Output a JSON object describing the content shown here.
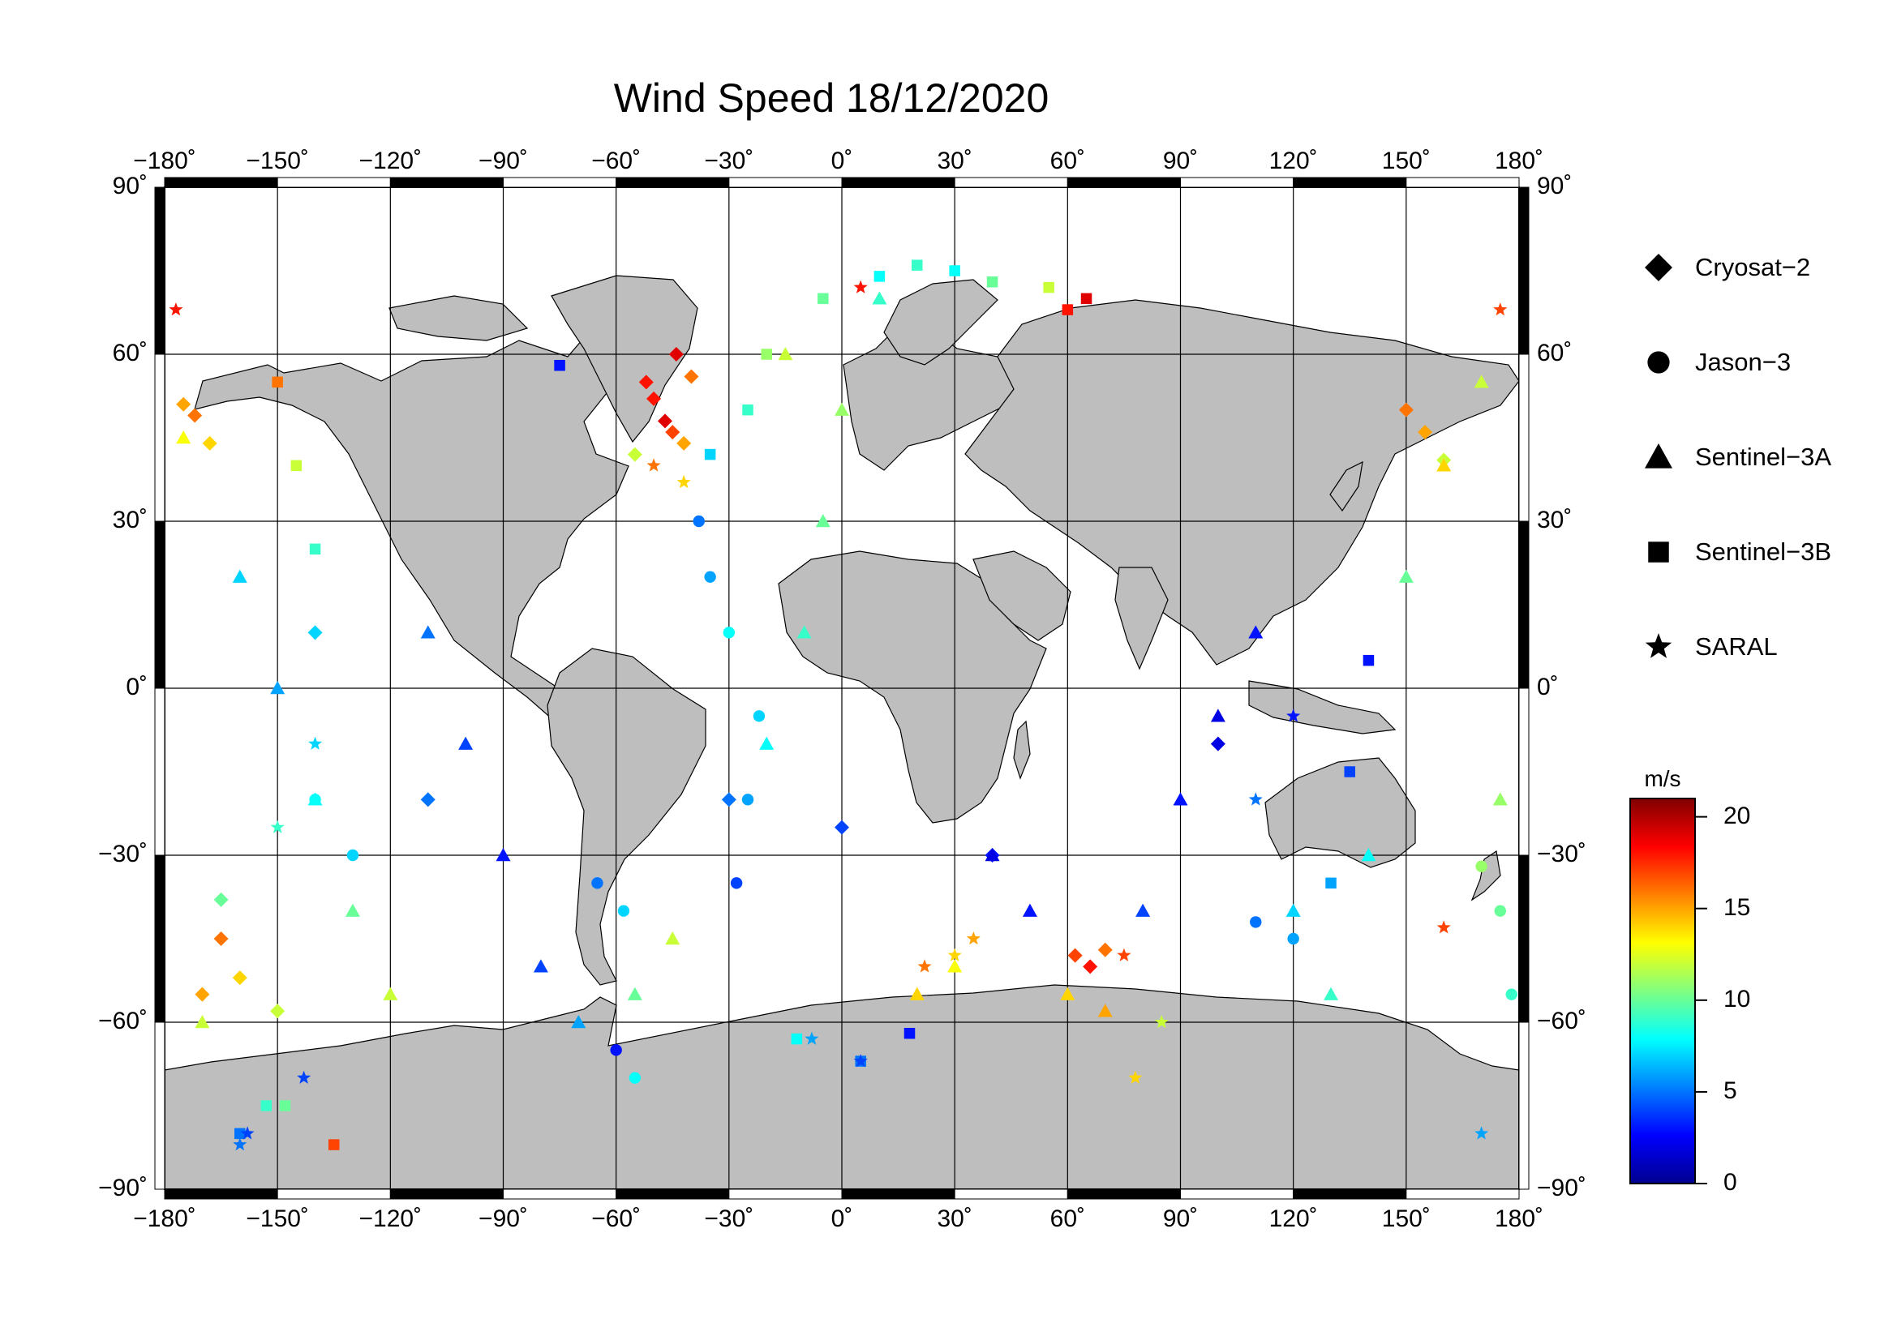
{
  "title": "Wind Speed 18/12/2020",
  "lon_ticks": [
    {
      "value": -180,
      "label": "−180˚"
    },
    {
      "value": -150,
      "label": "−150˚"
    },
    {
      "value": -120,
      "label": "−120˚"
    },
    {
      "value": -90,
      "label": "−90˚"
    },
    {
      "value": -60,
      "label": "−60˚"
    },
    {
      "value": -30,
      "label": "−30˚"
    },
    {
      "value": 0,
      "label": "0˚"
    },
    {
      "value": 30,
      "label": "30˚"
    },
    {
      "value": 60,
      "label": "60˚"
    },
    {
      "value": 90,
      "label": "90˚"
    },
    {
      "value": 120,
      "label": "120˚"
    },
    {
      "value": 150,
      "label": "150˚"
    },
    {
      "value": 180,
      "label": "180˚"
    }
  ],
  "lat_ticks": [
    {
      "value": 90,
      "label": "90˚"
    },
    {
      "value": 60,
      "label": "60˚"
    },
    {
      "value": 30,
      "label": "30˚"
    },
    {
      "value": 0,
      "label": "0˚"
    },
    {
      "value": -30,
      "label": "−30˚"
    },
    {
      "value": -60,
      "label": "−60˚"
    },
    {
      "value": -90,
      "label": "−90˚"
    }
  ],
  "legend": [
    {
      "symbol": "diamond",
      "label": "Cryosat−2"
    },
    {
      "symbol": "circle",
      "label": "Jason−3"
    },
    {
      "symbol": "triangle",
      "label": "Sentinel−3A"
    },
    {
      "symbol": "square",
      "label": "Sentinel−3B"
    },
    {
      "symbol": "star",
      "label": "SARAL"
    }
  ],
  "colorbar": {
    "unit": "m/s",
    "min": 0,
    "max": 21,
    "ticks": [
      {
        "value": 20,
        "label": "20"
      },
      {
        "value": 15,
        "label": "15"
      },
      {
        "value": 10,
        "label": "10"
      },
      {
        "value": 5,
        "label": "5"
      },
      {
        "value": 0,
        "label": "0"
      }
    ],
    "colors": [
      "#00008f",
      "#0000ff",
      "#0080ff",
      "#00ffff",
      "#80ff80",
      "#ffff00",
      "#ff8000",
      "#ff0000",
      "#800000"
    ]
  },
  "colors": {
    "land": "#bebebe",
    "ocean": "#ffffff",
    "frame": "#000000"
  },
  "chart_data": {
    "type": "scatter",
    "map_projection": "equirectangular",
    "xlim": [
      -180,
      180
    ],
    "ylim": [
      -90,
      90
    ],
    "x_unit": "longitude (degrees)",
    "y_unit": "latitude (degrees)",
    "grid": true,
    "legend_position": "right",
    "color_scale": {
      "unit": "m/s",
      "range": [
        0,
        21
      ],
      "colormap": "jet"
    },
    "series": [
      {
        "name": "Cryosat−2",
        "marker": "diamond",
        "points": [
          [
            -47,
            48,
            19
          ],
          [
            -50,
            52,
            18
          ],
          [
            -45,
            46,
            17
          ],
          [
            -52,
            55,
            18
          ],
          [
            -44,
            60,
            19
          ],
          [
            -40,
            56,
            16
          ],
          [
            -42,
            44,
            15
          ],
          [
            -55,
            42,
            12
          ],
          [
            -172,
            49,
            16
          ],
          [
            -168,
            44,
            14
          ],
          [
            -175,
            51,
            15
          ],
          [
            -165,
            -45,
            16
          ],
          [
            -160,
            -52,
            14
          ],
          [
            -150,
            -58,
            12
          ],
          [
            -170,
            -55,
            15
          ],
          [
            62,
            -48,
            17
          ],
          [
            66,
            -50,
            18
          ],
          [
            70,
            -47,
            16
          ],
          [
            150,
            50,
            16
          ],
          [
            155,
            46,
            15
          ],
          [
            160,
            41,
            12
          ],
          [
            -165,
            -38,
            10
          ],
          [
            -30,
            -20,
            5
          ],
          [
            0,
            -25,
            4
          ],
          [
            40,
            -30,
            3
          ],
          [
            100,
            -10,
            2
          ],
          [
            -110,
            -20,
            5
          ],
          [
            -140,
            10,
            7
          ]
        ]
      },
      {
        "name": "Jason−3",
        "marker": "circle",
        "points": [
          [
            -60,
            -65,
            3
          ],
          [
            -55,
            -70,
            8
          ],
          [
            -58,
            -40,
            7
          ],
          [
            -65,
            -35,
            5
          ],
          [
            -28,
            -35,
            4
          ],
          [
            -25,
            -20,
            6
          ],
          [
            -22,
            -5,
            7
          ],
          [
            -30,
            10,
            8
          ],
          [
            -35,
            20,
            6
          ],
          [
            -38,
            30,
            5
          ],
          [
            175,
            -40,
            10
          ],
          [
            170,
            -32,
            11
          ],
          [
            178,
            -55,
            9
          ],
          [
            120,
            -45,
            6
          ],
          [
            110,
            -42,
            5
          ],
          [
            -130,
            -30,
            7
          ],
          [
            -140,
            -20,
            8
          ]
        ]
      },
      {
        "name": "Sentinel−3A",
        "marker": "triangle",
        "points": [
          [
            -160,
            20,
            7
          ],
          [
            -150,
            0,
            6
          ],
          [
            -140,
            -20,
            8
          ],
          [
            -130,
            -40,
            10
          ],
          [
            -120,
            -55,
            12
          ],
          [
            -110,
            10,
            5
          ],
          [
            -100,
            -10,
            4
          ],
          [
            -90,
            -30,
            3
          ],
          [
            -80,
            -50,
            4
          ],
          [
            -70,
            -60,
            6
          ],
          [
            -20,
            -10,
            8
          ],
          [
            -10,
            10,
            9
          ],
          [
            -5,
            30,
            10
          ],
          [
            0,
            50,
            11
          ],
          [
            10,
            70,
            9
          ],
          [
            -15,
            60,
            12
          ],
          [
            40,
            -30,
            2
          ],
          [
            50,
            -40,
            3
          ],
          [
            60,
            -55,
            14
          ],
          [
            70,
            -58,
            15
          ],
          [
            80,
            -40,
            4
          ],
          [
            90,
            -20,
            3
          ],
          [
            100,
            -5,
            2
          ],
          [
            110,
            10,
            3
          ],
          [
            120,
            -40,
            7
          ],
          [
            130,
            -55,
            9
          ],
          [
            140,
            -30,
            8
          ],
          [
            150,
            20,
            10
          ],
          [
            160,
            40,
            14
          ],
          [
            170,
            55,
            12
          ],
          [
            175,
            -20,
            11
          ],
          [
            -175,
            45,
            13
          ],
          [
            -170,
            -60,
            12
          ],
          [
            -55,
            -55,
            10
          ],
          [
            -45,
            -45,
            12
          ],
          [
            30,
            -50,
            13
          ],
          [
            20,
            -55,
            14
          ]
        ]
      },
      {
        "name": "Sentinel−3B",
        "marker": "square",
        "points": [
          [
            -153,
            -75,
            9
          ],
          [
            -148,
            -75,
            10
          ],
          [
            -135,
            -82,
            17
          ],
          [
            -160,
            -80,
            5
          ],
          [
            5,
            -67,
            5
          ],
          [
            -12,
            -63,
            8
          ],
          [
            18,
            -62,
            3
          ],
          [
            -75,
            58,
            3
          ],
          [
            60,
            68,
            18
          ],
          [
            65,
            70,
            19
          ],
          [
            55,
            72,
            12
          ],
          [
            40,
            73,
            10
          ],
          [
            30,
            75,
            8
          ],
          [
            20,
            76,
            9
          ],
          [
            10,
            74,
            8
          ],
          [
            -5,
            70,
            10
          ],
          [
            -20,
            60,
            11
          ],
          [
            -25,
            50,
            9
          ],
          [
            -35,
            42,
            7
          ],
          [
            -150,
            55,
            16
          ],
          [
            -145,
            40,
            12
          ],
          [
            -140,
            25,
            9
          ],
          [
            140,
            5,
            3
          ],
          [
            135,
            -15,
            4
          ],
          [
            130,
            -35,
            6
          ]
        ]
      },
      {
        "name": "SARAL",
        "marker": "star",
        "points": [
          [
            -177,
            68,
            18
          ],
          [
            175,
            68,
            17
          ],
          [
            5,
            72,
            18
          ],
          [
            -143,
            -70,
            4
          ],
          [
            -158,
            -80,
            4
          ],
          [
            -160,
            -82,
            5
          ],
          [
            5,
            -67,
            4
          ],
          [
            -8,
            -63,
            6
          ],
          [
            30,
            -48,
            14
          ],
          [
            35,
            -45,
            15
          ],
          [
            22,
            -50,
            16
          ],
          [
            75,
            -48,
            17
          ],
          [
            78,
            -70,
            14
          ],
          [
            85,
            -60,
            12
          ],
          [
            -42,
            37,
            14
          ],
          [
            -50,
            40,
            16
          ],
          [
            160,
            -43,
            17
          ],
          [
            170,
            -80,
            6
          ],
          [
            -140,
            -10,
            7
          ],
          [
            -150,
            -25,
            9
          ],
          [
            110,
            -20,
            5
          ],
          [
            120,
            -5,
            3
          ]
        ]
      }
    ],
    "tracks_note_free": true
  }
}
